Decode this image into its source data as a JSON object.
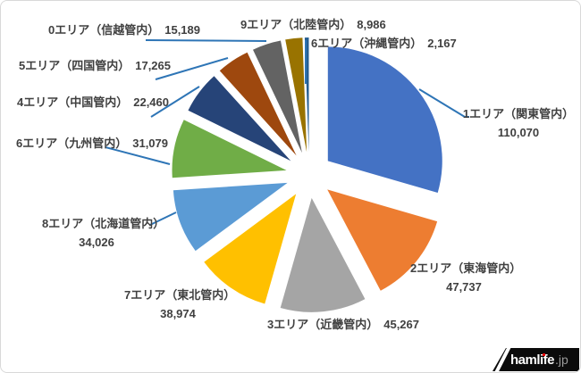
{
  "canvas": {
    "background": "#ffffff",
    "border_color": "#d9d9d9"
  },
  "chart_data": {
    "type": "pie",
    "title": "",
    "legend": "none",
    "style": "exploded",
    "start_angle_deg": 0,
    "direction": "clockwise",
    "label_color": "#404040",
    "leader_line_color": "#2E75B6",
    "slices": [
      {
        "label": "1エリア（関東管内）",
        "value": 110070,
        "value_text": "110,070",
        "color": "#4472C4"
      },
      {
        "label": "2エリア（東海管内）",
        "value": 47737,
        "value_text": "47,737",
        "color": "#ED7D31"
      },
      {
        "label": "3エリア（近畿管内）",
        "value": 45267,
        "value_text": "45,267",
        "color": "#A5A5A5"
      },
      {
        "label": "7エリア（東北管内）",
        "value": 38974,
        "value_text": "38,974",
        "color": "#FFC000"
      },
      {
        "label": "8エリア（北海道管内）",
        "value": 34026,
        "value_text": "34,026",
        "color": "#5B9BD5"
      },
      {
        "label": "6エリア（九州管内）",
        "value": 31079,
        "value_text": "31,079",
        "color": "#70AD47"
      },
      {
        "label": "4エリア（中国管内）",
        "value": 22460,
        "value_text": "22,460",
        "color": "#264478"
      },
      {
        "label": "5エリア（四国管内）",
        "value": 17265,
        "value_text": "17,265",
        "color": "#9E480E"
      },
      {
        "label": "0エリア（信越管内）",
        "value": 15189,
        "value_text": "15,189",
        "color": "#636363"
      },
      {
        "label": "9エリア（北陸管内）",
        "value": 8986,
        "value_text": "8,986",
        "color": "#997300"
      },
      {
        "label": "6エリア（沖縄管内）",
        "value": 2167,
        "value_text": "2,167",
        "color": "#255E91"
      }
    ]
  },
  "watermark": {
    "brand": "hamlife",
    "suffix": ".jp",
    "background": "#0b0b0b",
    "brand_color": "#ffffff",
    "suffix_color": "#9a9a9a",
    "dot_color": "#e60000"
  }
}
